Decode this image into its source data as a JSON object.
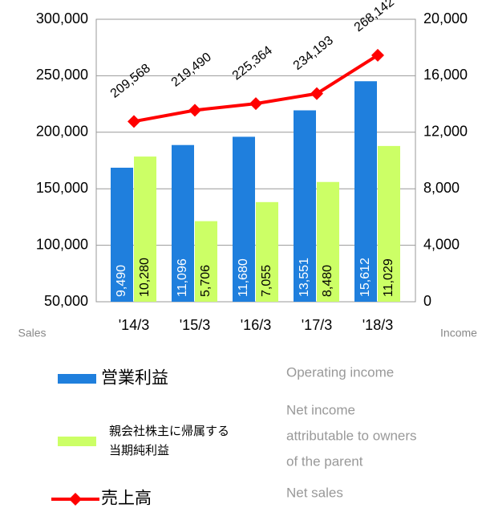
{
  "chart_data": {
    "type": "bar-line",
    "categories": [
      "'14/3",
      "'15/3",
      "'16/3",
      "'17/3",
      "'18/3"
    ],
    "ylabel": "Sales",
    "y2label": "Income",
    "ylim": [
      50000,
      300000
    ],
    "yticks": [
      {
        "value": 50000,
        "label": "50,000"
      },
      {
        "value": 100000,
        "label": "100,000"
      },
      {
        "value": 150000,
        "label": "150,000"
      },
      {
        "value": 200000,
        "label": "200,000"
      },
      {
        "value": 250000,
        "label": "250,000"
      },
      {
        "value": 300000,
        "label": "300,000"
      }
    ],
    "y2lim": [
      0,
      20000
    ],
    "y2ticks": [
      0,
      {
        "value": 4000,
        "label": "4,000"
      },
      {
        "value": 8000,
        "label": "8,000"
      },
      {
        "value": 12000,
        "label": "12,000"
      },
      {
        "value": 16000,
        "label": "16,000"
      },
      {
        "value": 20000,
        "label": "20,000"
      }
    ],
    "grid": true,
    "series": [
      {
        "name": "営業利益",
        "description": [
          "Operating income"
        ],
        "type": "bar",
        "axis": "y2",
        "color": "#1f7fdd",
        "label_color": "#ffffff",
        "values": [
          9490,
          11096,
          11680,
          13551,
          15612
        ],
        "value_labels": [
          "9,490",
          "11,096",
          "11,680",
          "13,551",
          "15,612"
        ]
      },
      {
        "name": "親会社株主に帰属する当期純利益",
        "description": [
          "Net income",
          "attributable to owners",
          "of the parent"
        ],
        "type": "bar",
        "axis": "y2",
        "color": "#ccff66",
        "label_color": "#000000",
        "values": [
          10280,
          5706,
          7055,
          8480,
          11029
        ],
        "value_labels": [
          "10,280",
          "5,706",
          "7,055",
          "8,480",
          "11,029"
        ]
      },
      {
        "name": "売上高",
        "description": [
          "Net sales"
        ],
        "type": "line",
        "color": "#ff0000",
        "values": [
          209568,
          219490,
          225364,
          234193,
          268142
        ],
        "value_labels": [
          "209,568",
          "219,490",
          "225,364",
          "234,193",
          "268,142"
        ]
      }
    ]
  }
}
